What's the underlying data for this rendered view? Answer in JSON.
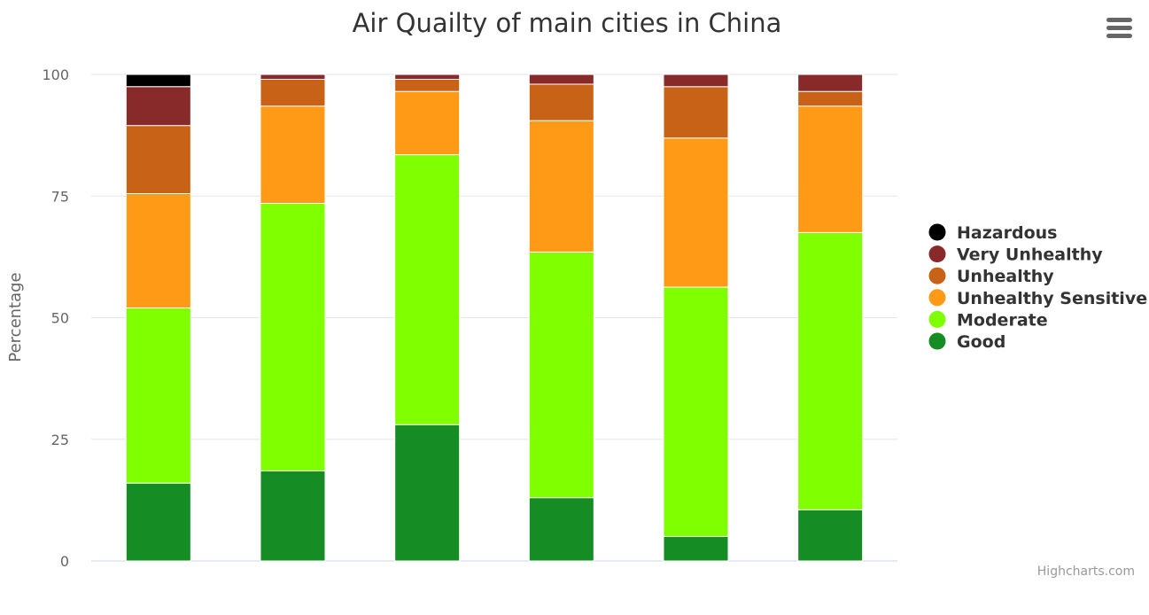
{
  "chart_data": {
    "type": "bar",
    "stacking": "percent",
    "title": "Air Quailty of main cities in China",
    "xlabel": "",
    "ylabel": "Percentage",
    "ylim": [
      0,
      100
    ],
    "yticks": [
      "0",
      "25",
      "50",
      "75",
      "100"
    ],
    "categories": [
      "",
      "",
      "",
      "",
      "",
      ""
    ],
    "grid": true,
    "legend_position": "right",
    "series": [
      {
        "name": "Good",
        "color": "#168c25",
        "values": [
          16,
          18.5,
          28,
          13,
          5,
          10.5
        ]
      },
      {
        "name": "Moderate",
        "color": "#7fff00",
        "values": [
          36,
          55,
          55.5,
          50.5,
          51,
          57
        ]
      },
      {
        "name": "Unhealthy Sensitive",
        "color": "#ff9a16",
        "values": [
          23.5,
          20,
          13,
          27,
          30.5,
          26
        ]
      },
      {
        "name": "Unhealthy",
        "color": "#c86216",
        "values": [
          14,
          5.5,
          2.5,
          7.5,
          10.5,
          3
        ]
      },
      {
        "name": "Very Unhealthy",
        "color": "#892a2a",
        "values": [
          8,
          1,
          1,
          2,
          2.5,
          3.5
        ]
      },
      {
        "name": "Hazardous",
        "color": "#000000",
        "values": [
          2.5,
          0,
          0,
          0,
          0,
          0
        ]
      }
    ],
    "legend_order": [
      "Hazardous",
      "Very Unhealthy",
      "Unhealthy",
      "Unhealthy Sensitive",
      "Moderate",
      "Good"
    ]
  },
  "menu_icon": "hamburger-menu-icon",
  "credits": "Highcharts.com"
}
